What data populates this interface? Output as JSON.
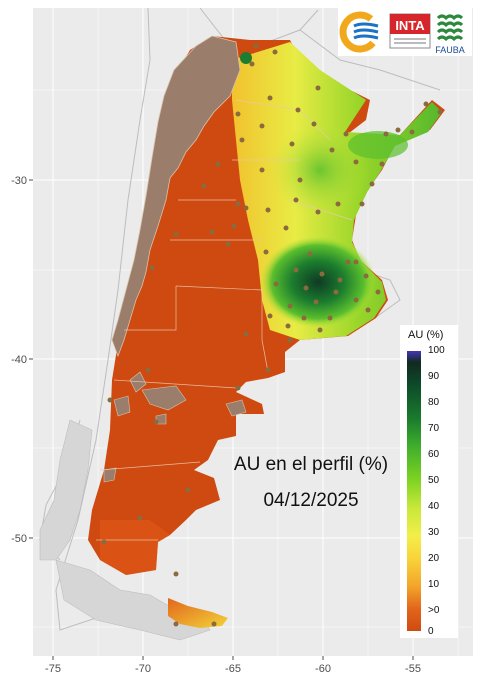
{
  "map": {
    "title": "AU en el perfil (%)",
    "date": "04/12/2025",
    "x_ticks": [
      "-75",
      "-70",
      "-65",
      "-60",
      "-55"
    ],
    "y_ticks": [
      "-30",
      "-40",
      "-50"
    ]
  },
  "legend": {
    "title": "AU (%)",
    "labels": [
      "100",
      "90",
      "80",
      "70",
      "60",
      "50",
      "40",
      "30",
      "20",
      "10",
      ">0",
      "0"
    ],
    "colors": [
      "#4337b8",
      "#12291f",
      "#0d4a2a",
      "#1a7a2c",
      "#3fae2c",
      "#7ed321",
      "#c8e83a",
      "#f3ee4a",
      "#f9d43a",
      "#f2a52a",
      "#e2661c",
      "#cf4a10"
    ]
  },
  "logos": {
    "items": [
      "logo-1-icon",
      "inta-logo",
      "fauba-logo"
    ],
    "inta_text": "INTA",
    "fauba_text": "FAUBA"
  },
  "colors": {
    "panel_bg": "#ebebeb",
    "grid": "#ffffff",
    "dry": "#cf4a10",
    "mountain": "#9a7d6b",
    "neighbor_border": "#bdbdbd",
    "station": "#8b6a3e"
  }
}
